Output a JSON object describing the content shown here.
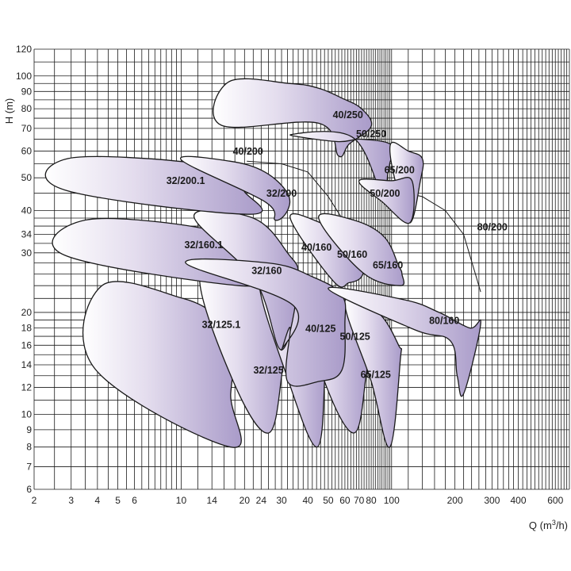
{
  "chart_data": {
    "type": "area",
    "x_axis": {
      "label": "Q (m³/h)",
      "label_text": "Q (m",
      "label_sup": "3",
      "label_tail": "/h)",
      "scale": "log",
      "range": [
        2,
        700
      ],
      "tick_values": [
        2,
        3,
        4,
        5,
        6,
        10,
        14,
        20,
        24,
        30,
        40,
        50,
        60,
        70,
        80,
        100,
        200,
        300,
        400,
        600
      ],
      "tick_labels": [
        "2",
        "3",
        "4",
        "5",
        "6",
        "10",
        "14",
        "20",
        "24",
        "30",
        "40",
        "50",
        "60",
        "70",
        "80",
        "100",
        "200",
        "300",
        "400",
        "600"
      ]
    },
    "y_axis": {
      "label": "H (m)",
      "scale": "log",
      "range": [
        6,
        120
      ],
      "tick_values": [
        6,
        7,
        8,
        9,
        10,
        12,
        14,
        16,
        18,
        20,
        30,
        34,
        40,
        50,
        60,
        70,
        80,
        90,
        100,
        120
      ],
      "tick_labels": [
        "6",
        "7",
        "8",
        "9",
        "10",
        "12",
        "14",
        "16",
        "18",
        "20",
        "30",
        "34",
        "40",
        "50",
        "60",
        "70",
        "80",
        "90",
        "100",
        "120"
      ]
    },
    "grid": true,
    "region_color": "#a99bc9",
    "series": [
      {
        "name": "32/125.1",
        "label_at": [
          15.5,
          18
        ],
        "region": [
          [
            3.9,
            13.6
          ],
          [
            4.2,
            24
          ],
          [
            10.2,
            22
          ],
          [
            15.2,
            19.4
          ],
          [
            18.5,
            18
          ],
          [
            17.2,
            11.5
          ],
          [
            17.2,
            8
          ]
        ]
      },
      {
        "name": "32/125",
        "label_at": [
          26,
          13.2
        ],
        "region": [
          [
            17.5,
            12.7
          ],
          [
            12.3,
            26
          ],
          [
            22.5,
            25
          ],
          [
            33,
            19
          ],
          [
            30.5,
            13.8
          ],
          [
            26,
            8.8
          ]
        ]
      },
      {
        "name": "40/125",
        "label_at": [
          46,
          17.5
        ],
        "region": [
          [
            32,
            12.8
          ],
          [
            23.5,
            25
          ],
          [
            35,
            24.5
          ],
          [
            47,
            18.5
          ],
          [
            48,
            12.5
          ],
          [
            44,
            8
          ]
        ]
      },
      {
        "name": "50/125",
        "label_at": [
          67,
          16.6
        ],
        "region": [
          [
            48,
            12.5
          ],
          [
            36,
            24
          ],
          [
            57,
            22.5
          ],
          [
            76,
            17.5
          ],
          [
            75,
            12.5
          ],
          [
            66,
            8.8
          ]
        ]
      },
      {
        "name": "65/125",
        "label_at": [
          84,
          12.8
        ],
        "region": [
          [
            80,
            12.5
          ],
          [
            60,
            21.5
          ],
          [
            86,
            20
          ],
          [
            108,
            16
          ],
          [
            110,
            14.5
          ],
          [
            98,
            8
          ]
        ]
      },
      {
        "name": "32/160.1",
        "label_at": [
          12.8,
          31
        ],
        "region": [
          [
            2.8,
            29.5
          ],
          [
            3.5,
            37.5
          ],
          [
            12.5,
            35.5
          ],
          [
            17.3,
            31
          ],
          [
            21,
            26.5
          ],
          [
            18.8,
            24
          ]
        ]
      },
      {
        "name": "32/160",
        "label_at": [
          25.5,
          26
        ],
        "region": [
          [
            22.5,
            24.8
          ],
          [
            11.5,
            38.5
          ],
          [
            22,
            38
          ],
          [
            32,
            30
          ],
          [
            36,
            25
          ],
          [
            30,
            15.5
          ]
        ]
      },
      {
        "name": "40/160",
        "label_at": [
          44,
          30.5
        ],
        "region": [
          [
            34,
            21
          ],
          [
            10.5,
            28
          ],
          [
            26,
            28
          ],
          [
            42,
            25.5
          ],
          [
            58,
            22.5
          ],
          [
            60,
            18.5
          ],
          [
            58,
            13.5
          ],
          [
            45,
            12.5
          ],
          [
            32,
            12.5
          ],
          [
            33,
            18
          ],
          [
            30,
            15.5
          ]
        ]
      },
      {
        "name": "50/160",
        "label_at": [
          65,
          29
        ],
        "region": [
          [
            53,
            24.7
          ],
          [
            33,
            38
          ],
          [
            46,
            36.8
          ],
          [
            60,
            33
          ],
          [
            72,
            28
          ],
          [
            72,
            25.5
          ],
          [
            63,
            24.5
          ]
        ]
      },
      {
        "name": "65/160",
        "label_at": [
          96,
          27
        ],
        "region": [
          [
            73,
            26.2
          ],
          [
            45,
            38
          ],
          [
            66,
            37.5
          ],
          [
            92,
            33.5
          ],
          [
            108,
            27.5
          ],
          [
            112,
            26
          ],
          [
            110,
            24
          ]
        ]
      },
      {
        "name": "80/160",
        "label_at": [
          178,
          18.5
        ],
        "region": [
          [
            128,
            17.8
          ],
          [
            50,
            23.5
          ],
          [
            115,
            21.8
          ],
          [
            168,
            20
          ],
          [
            235,
            18
          ],
          [
            265,
            18.5
          ],
          [
            220,
            11.5
          ],
          [
            205,
            13
          ],
          [
            190,
            16.5
          ]
        ]
      },
      {
        "name": "32/200.1",
        "label_at": [
          10.5,
          48
        ],
        "region": [
          [
            2.8,
            46
          ],
          [
            2.9,
            57
          ],
          [
            11,
            55.5
          ],
          [
            17,
            50
          ],
          [
            20,
            45.5
          ],
          [
            20.8,
            39
          ]
        ]
      },
      {
        "name": "32/200",
        "label_at": [
          30,
          44
        ],
        "region": [
          [
            25,
            42.5
          ],
          [
            10,
            56.5
          ],
          [
            17,
            56
          ],
          [
            25,
            52
          ],
          [
            32,
            45
          ],
          [
            32,
            40
          ],
          [
            28,
            37.5
          ]
        ]
      },
      {
        "name": "40/250",
        "label_at": [
          62,
          75
        ],
        "region": [
          [
            45,
            72.5
          ],
          [
            15.5,
            71.5
          ],
          [
            16.8,
            96
          ],
          [
            33,
            95
          ],
          [
            45,
            92
          ],
          [
            58,
            86
          ],
          [
            72,
            80
          ],
          [
            80,
            71
          ],
          [
            63,
            63
          ],
          [
            56,
            58
          ]
        ]
      },
      {
        "name": "50/250",
        "label_at": [
          80,
          66
        ],
        "region": [
          [
            65,
            66
          ],
          [
            33,
            67
          ],
          [
            55,
            64
          ],
          [
            72,
            65
          ],
          [
            100,
            62.5
          ],
          [
            98,
            55
          ],
          [
            96,
            51.5
          ],
          [
            90,
            45
          ]
        ]
      },
      {
        "name": "65/200",
        "label_at": [
          109,
          51.5
        ],
        "region": [
          [
            104,
            49
          ],
          [
            99,
            63
          ],
          [
            120,
            60
          ],
          [
            140,
            57
          ],
          [
            137,
            49
          ],
          [
            122,
            36.8
          ]
        ]
      },
      {
        "name": "50/200",
        "label_at": [
          93,
          44
        ],
        "region": [
          [
            90,
            42.5
          ],
          [
            70,
            49
          ],
          [
            100,
            49
          ],
          [
            125,
            49
          ],
          [
            122,
            36.8
          ]
        ]
      }
    ],
    "curves": [
      {
        "name": "40/200",
        "label_at": [
          17.6,
          58.5
        ],
        "points": [
          [
            20.5,
            56
          ],
          [
            30,
            55
          ],
          [
            40,
            52
          ],
          [
            50,
            44
          ],
          [
            58,
            38
          ],
          [
            66,
            31
          ]
        ]
      },
      {
        "name": "80/200",
        "label_at": [
          255,
          35
        ],
        "points": [
          [
            100,
            46
          ],
          [
            140,
            44
          ],
          [
            180,
            40
          ],
          [
            220,
            34
          ],
          [
            250,
            26
          ],
          [
            265,
            23
          ]
        ]
      }
    ]
  }
}
